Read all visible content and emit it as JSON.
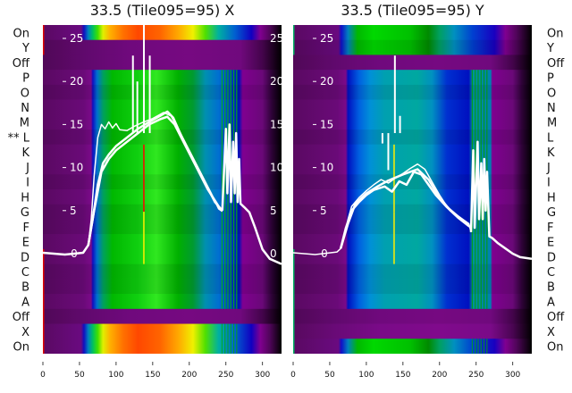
{
  "chart_data": [
    {
      "type": "heatmap",
      "title": "33.5 (Tile095=95) X",
      "row_labels": [
        "On",
        "Y",
        "Off",
        "P",
        "O",
        "N",
        "M",
        "** L",
        "K",
        "J",
        "I",
        "H",
        "G",
        "F",
        "E",
        "D",
        "C",
        "B",
        "A",
        "Off",
        "X",
        "On"
      ],
      "xlim": [
        0,
        326
      ],
      "x_ticks": [
        "0",
        "50",
        "100",
        "150",
        "200",
        "250",
        "300"
      ],
      "overlay_ylim": [
        -2,
        26
      ],
      "overlay_y_ticks": [
        "0",
        "5",
        "10",
        "15",
        "20",
        "25"
      ],
      "overlay_lines": [
        {
          "name": "trace-a",
          "points": [
            [
              0,
              0.1
            ],
            [
              30,
              -0.1
            ],
            [
              55,
              0.1
            ],
            [
              62,
              1
            ],
            [
              66,
              4
            ],
            [
              70,
              9
            ],
            [
              75,
              13.5
            ],
            [
              80,
              15
            ],
            [
              85,
              14.5
            ],
            [
              90,
              15.3
            ],
            [
              95,
              14.6
            ],
            [
              100,
              15.1
            ],
            [
              105,
              14.4
            ],
            [
              115,
              14.3
            ],
            [
              125,
              14.8
            ],
            [
              135,
              15.2
            ],
            [
              150,
              15.7
            ],
            [
              165,
              16.4
            ],
            [
              175,
              16
            ],
            [
              185,
              14.5
            ],
            [
              200,
              12
            ],
            [
              215,
              9.5
            ],
            [
              230,
              7
            ],
            [
              240,
              5.2
            ],
            [
              245,
              4.9
            ]
          ]
        },
        {
          "name": "trace-b",
          "points": [
            [
              0,
              0.1
            ],
            [
              30,
              -0.1
            ],
            [
              55,
              0.1
            ],
            [
              62,
              1
            ],
            [
              68,
              4
            ],
            [
              75,
              8
            ],
            [
              82,
              10.5
            ],
            [
              90,
              11.5
            ],
            [
              100,
              12.5
            ],
            [
              115,
              13.5
            ],
            [
              130,
              14.5
            ],
            [
              145,
              15.3
            ],
            [
              160,
              16
            ],
            [
              170,
              16.5
            ],
            [
              178,
              15.8
            ],
            [
              190,
              13.5
            ],
            [
              205,
              11
            ],
            [
              220,
              8.5
            ],
            [
              235,
              6
            ],
            [
              245,
              5
            ]
          ]
        },
        {
          "name": "trace-c",
          "points": [
            [
              62,
              1
            ],
            [
              70,
              5
            ],
            [
              80,
              9.5
            ],
            [
              90,
              11
            ],
            [
              100,
              12
            ],
            [
              115,
              13
            ],
            [
              130,
              14
            ],
            [
              145,
              15
            ],
            [
              160,
              15.6
            ],
            [
              170,
              15.9
            ],
            [
              180,
              15
            ],
            [
              195,
              12.5
            ],
            [
              210,
              10
            ],
            [
              225,
              7.5
            ],
            [
              240,
              5.5
            ]
          ]
        },
        {
          "name": "trace-tail",
          "points": [
            [
              245,
              5
            ],
            [
              250,
              14.5
            ],
            [
              252,
              7
            ],
            [
              255,
              15
            ],
            [
              257,
              6
            ],
            [
              260,
              13
            ],
            [
              262,
              7
            ],
            [
              264,
              14
            ],
            [
              266,
              6
            ],
            [
              268,
              11
            ],
            [
              270,
              5.8
            ],
            [
              275,
              5.4
            ],
            [
              282,
              4.8
            ],
            [
              290,
              3
            ],
            [
              300,
              0.5
            ],
            [
              310,
              -0.6
            ],
            [
              326,
              -1.2
            ]
          ]
        }
      ],
      "spikes": [
        [
          123,
          23
        ],
        [
          129,
          20
        ],
        [
          138,
          27
        ],
        [
          146,
          23
        ]
      ],
      "marker_line": {
        "x": 137,
        "rows": "K-D",
        "colors": [
          "#ff0000",
          "#ffee00"
        ]
      }
    },
    {
      "type": "heatmap",
      "title": "33.5 (Tile095=95) Y",
      "row_labels": [
        "On",
        "Y",
        "Off",
        "P",
        "O",
        "N",
        "M",
        "L",
        "K",
        "J",
        "I",
        "H",
        "G",
        "F",
        "E",
        "D",
        "C",
        "B",
        "A",
        "Off",
        "X",
        "On"
      ],
      "xlim": [
        0,
        326
      ],
      "x_ticks": [
        "0",
        "50",
        "100",
        "150",
        "200",
        "250",
        "300"
      ],
      "overlay_ylim": [
        -2,
        26
      ],
      "overlay_y_ticks": [
        "0",
        "5",
        "10",
        "15",
        "20",
        "25"
      ],
      "overlay_lines": [
        {
          "name": "trace-a",
          "points": [
            [
              0,
              0.1
            ],
            [
              30,
              -0.1
            ],
            [
              60,
              0.2
            ],
            [
              65,
              0.6
            ],
            [
              70,
              2
            ],
            [
              75,
              4
            ],
            [
              80,
              5.5
            ],
            [
              90,
              6.5
            ],
            [
              100,
              7.3
            ],
            [
              110,
              8
            ],
            [
              120,
              8.6
            ],
            [
              130,
              8.2
            ],
            [
              140,
              8.8
            ],
            [
              150,
              9.3
            ],
            [
              160,
              9.9
            ],
            [
              170,
              10.4
            ],
            [
              180,
              9.8
            ],
            [
              190,
              8.3
            ],
            [
              200,
              6.8
            ],
            [
              210,
              5.5
            ],
            [
              225,
              4.4
            ],
            [
              240,
              3.5
            ],
            [
              243,
              2.5
            ]
          ]
        },
        {
          "name": "trace-b",
          "points": [
            [
              65,
              0.6
            ],
            [
              72,
              3
            ],
            [
              80,
              5
            ],
            [
              90,
              6
            ],
            [
              100,
              6.8
            ],
            [
              110,
              7.4
            ],
            [
              125,
              7.8
            ],
            [
              135,
              7.2
            ],
            [
              145,
              8.4
            ],
            [
              155,
              8
            ],
            [
              165,
              9.5
            ],
            [
              175,
              9.2
            ],
            [
              185,
              8
            ],
            [
              195,
              6.8
            ],
            [
              210,
              5.4
            ],
            [
              225,
              4.2
            ],
            [
              240,
              3.2
            ]
          ]
        },
        {
          "name": "trace-c",
          "points": [
            [
              65,
              0.6
            ],
            [
              75,
              3.5
            ],
            [
              85,
              5.8
            ],
            [
              100,
              7
            ],
            [
              115,
              7.8
            ],
            [
              130,
              8.5
            ],
            [
              150,
              9.2
            ],
            [
              170,
              9.8
            ],
            [
              185,
              8.6
            ],
            [
              200,
              6.5
            ],
            [
              215,
              5
            ],
            [
              230,
              4
            ],
            [
              243,
              3
            ]
          ]
        },
        {
          "name": "trace-tail",
          "points": [
            [
              243,
              2.5
            ],
            [
              246,
              12
            ],
            [
              248,
              3
            ],
            [
              252,
              13
            ],
            [
              254,
              4
            ],
            [
              257,
              10.5
            ],
            [
              259,
              4
            ],
            [
              261,
              11
            ],
            [
              263,
              5
            ],
            [
              265,
              9.5
            ],
            [
              268,
              2
            ],
            [
              272,
              1.8
            ],
            [
              280,
              1.2
            ],
            [
              290,
              0.6
            ],
            [
              300,
              0
            ],
            [
              310,
              -0.4
            ],
            [
              326,
              -0.6
            ]
          ]
        }
      ],
      "spikes": [
        [
          122,
          12.8
        ],
        [
          130,
          9.7
        ],
        [
          139,
          23
        ],
        [
          146,
          16
        ]
      ],
      "marker_line": {
        "x": 137,
        "rows": "K-D",
        "colors": [
          "#ffee00",
          "#ffee00"
        ]
      }
    }
  ]
}
